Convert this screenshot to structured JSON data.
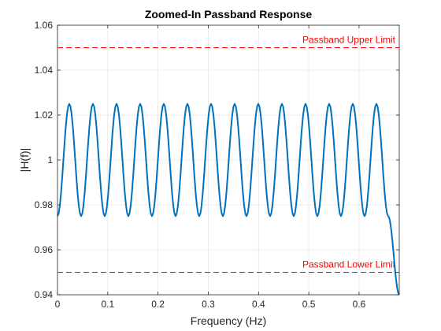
{
  "chart_data": {
    "type": "line",
    "title": "Zoomed-In Passband Response",
    "xlabel": "Frequency (Hz)",
    "ylabel": "|H(f)|",
    "xlim": [
      0,
      0.68
    ],
    "ylim": [
      0.94,
      1.06
    ],
    "x_ticks": [
      "0",
      "0.1",
      "0.2",
      "0.3",
      "0.4",
      "0.5",
      "0.6"
    ],
    "y_ticks": [
      "0.94",
      "0.96",
      "0.98",
      "1",
      "1.02",
      "1.04",
      "1.06"
    ],
    "grid": true,
    "series": [
      {
        "color": "#0072BD",
        "x": [
          0,
          0.0235,
          0.047,
          0.0705,
          0.094,
          0.1175,
          0.141,
          0.1645,
          0.188,
          0.2115,
          0.235,
          0.2585,
          0.282,
          0.3055,
          0.329,
          0.3525,
          0.376,
          0.3995,
          0.423,
          0.4465,
          0.47,
          0.4935,
          0.517,
          0.5405,
          0.564,
          0.5875,
          0.611,
          0.6345,
          0.658,
          0.6815,
          0.68
        ],
        "y": [
          0.975,
          1.025,
          0.975,
          1.025,
          0.975,
          1.025,
          0.975,
          1.025,
          0.975,
          1.025,
          0.975,
          1.025,
          0.975,
          1.025,
          0.975,
          1.025,
          0.975,
          1.025,
          0.975,
          1.025,
          0.975,
          1.025,
          0.975,
          1.025,
          0.975,
          1.025,
          0.975,
          1.025,
          0.975,
          1.025,
          0.94
        ]
      }
    ],
    "reference_lines": [
      {
        "y": 1.05,
        "label": "Passband Upper Limit",
        "color": "#FF0000",
        "style": "dashed"
      },
      {
        "y": 0.95,
        "label": "Passband Lower Limit",
        "color": "#FF0000",
        "style": "dashed"
      }
    ]
  }
}
